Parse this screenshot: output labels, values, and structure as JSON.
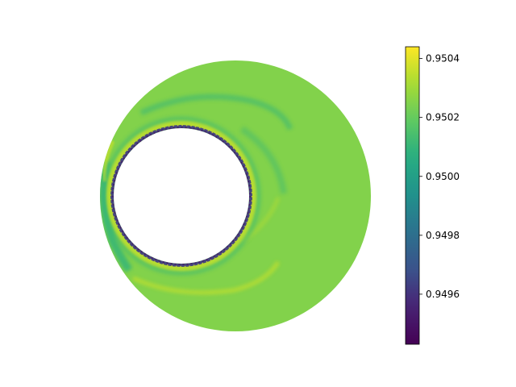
{
  "chart_data": {
    "type": "heatmap",
    "geometry": "eccentric annulus (outer circle with offset inner circular hole)",
    "colormap": "viridis",
    "colorbar": {
      "range": [
        0.94943,
        0.95044
      ],
      "ticks": [
        0.9496,
        0.9498,
        0.95,
        0.9502,
        0.9504
      ],
      "tick_labels": [
        "0.9496",
        "0.9498",
        "0.9500",
        "0.9502",
        "0.9504"
      ]
    },
    "field": {
      "background_value": 0.95025,
      "features": [
        {
          "name": "inner-rim",
          "description": "thin band along hole edge",
          "value_low": 0.9495,
          "value_high": 0.9504
        },
        {
          "name": "rim-highlight",
          "value": 0.95035
        },
        {
          "name": "left-edge-streaks",
          "value": 0.9501
        },
        {
          "name": "upper-arc-wake",
          "value": 0.9501
        },
        {
          "name": "lower-arc-wake",
          "value": 0.95035
        }
      ]
    },
    "title": "",
    "xlabel": "",
    "ylabel": "",
    "axes_visible": false
  }
}
